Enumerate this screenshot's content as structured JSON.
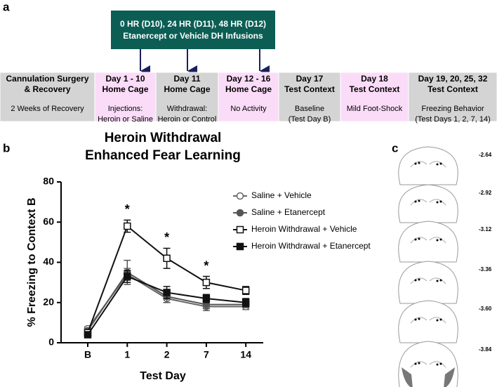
{
  "panels": [
    "a",
    "b",
    "c"
  ],
  "infusion": [
    "0 HR (D10), 24 HR (D11), 48 HR (D12)",
    "Etanercept or Vehicle DH Infusions"
  ],
  "timeline": [
    {
      "title": [
        "Cannulation Surgery",
        "& Recovery"
      ],
      "desc": [
        "2 Weeks of Recovery"
      ],
      "color": "#d4d4d4"
    },
    {
      "title": [
        "Day 1 - 10",
        "Home Cage"
      ],
      "desc": [
        "Injections:",
        "Heroin or Saline"
      ],
      "color": "#fbdcf8"
    },
    {
      "title": [
        "Day 11",
        "Home Cage"
      ],
      "desc": [
        "Withdrawal:",
        "Heroin or Control"
      ],
      "color": "#d4d4d4"
    },
    {
      "title": [
        "Day 12 - 16",
        "Home Cage"
      ],
      "desc": [
        "No Activity"
      ],
      "color": "#fbdcf8"
    },
    {
      "title": [
        "Day 17",
        "Test Context"
      ],
      "desc": [
        "Baseline",
        "(Test Day B)"
      ],
      "color": "#d4d4d4"
    },
    {
      "title": [
        "Day 18",
        "Test Context"
      ],
      "desc": [
        "Mild Foot-Shock"
      ],
      "color": "#fbdcf8"
    },
    {
      "title": [
        "Day 19, 20, 25, 32",
        "Test Context"
      ],
      "desc": [
        "Freezing Behavior",
        "(Test Days 1, 2, 7, 14)"
      ],
      "color": "#d4d4d4"
    }
  ],
  "chart_data": {
    "type": "line",
    "title": [
      "Heroin Withdrawal",
      "Enhanced Fear Learning"
    ],
    "x_label": "Test Day",
    "y_label": "% Freezing to Context B",
    "categories": [
      "B",
      "1",
      "2",
      "7",
      "14"
    ],
    "ylim": [
      0,
      80
    ],
    "yticks": [
      0,
      20,
      40,
      60,
      80
    ],
    "series": [
      {
        "name": "Saline + Vehicle",
        "color": "#666666",
        "marker": "circle",
        "filled": false,
        "values": [
          7,
          34,
          22,
          18,
          18
        ],
        "errors": [
          1,
          3,
          2,
          2,
          1.5
        ]
      },
      {
        "name": "Saline + Etanercept",
        "color": "#555555",
        "marker": "circle",
        "filled": true,
        "values": [
          6,
          35,
          23,
          19,
          19
        ],
        "errors": [
          1,
          6,
          3,
          2,
          1.5
        ]
      },
      {
        "name": "Heroin Withdrawal + Vehicle",
        "color": "#111111",
        "marker": "square",
        "filled": false,
        "values": [
          5,
          58,
          42,
          30,
          26
        ],
        "errors": [
          1,
          3,
          5,
          3,
          2
        ]
      },
      {
        "name": "Heroin Withdrawal + Etanercept",
        "color": "#111111",
        "marker": "square",
        "filled": true,
        "values": [
          4,
          33,
          25,
          22,
          20
        ],
        "errors": [
          1,
          3,
          3,
          2,
          2
        ]
      }
    ],
    "annotations": [
      {
        "text": "*",
        "category": "1"
      },
      {
        "text": "*",
        "category": "2"
      },
      {
        "text": "*",
        "category": "7"
      }
    ]
  },
  "sections": [
    "-2.64",
    "-2.92",
    "-3.12",
    "-3.36",
    "-3.60",
    "-3.84"
  ]
}
